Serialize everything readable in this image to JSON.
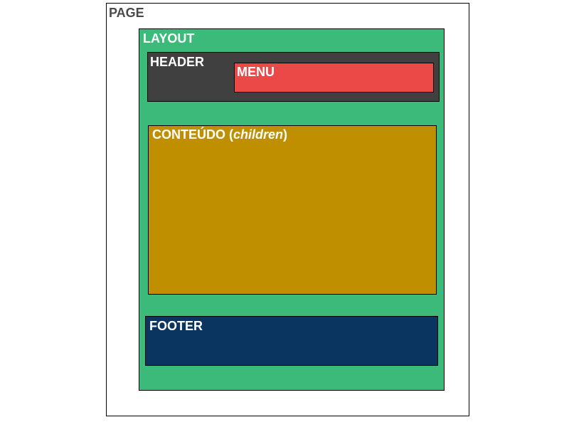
{
  "diagram": {
    "page": {
      "label": "PAGE",
      "color": "#ffffff"
    },
    "layout": {
      "label": "LAYOUT",
      "color": "#3cba7a"
    },
    "header": {
      "label": "HEADER",
      "color": "#404040"
    },
    "menu": {
      "label": "MENU",
      "color": "#eb4848"
    },
    "content": {
      "label_prefix": "CONTEÚDO (",
      "label_italic": "children",
      "label_suffix": ")",
      "color": "#c08f00"
    },
    "footer": {
      "label": "FOOTER",
      "color": "#0b3561"
    }
  }
}
